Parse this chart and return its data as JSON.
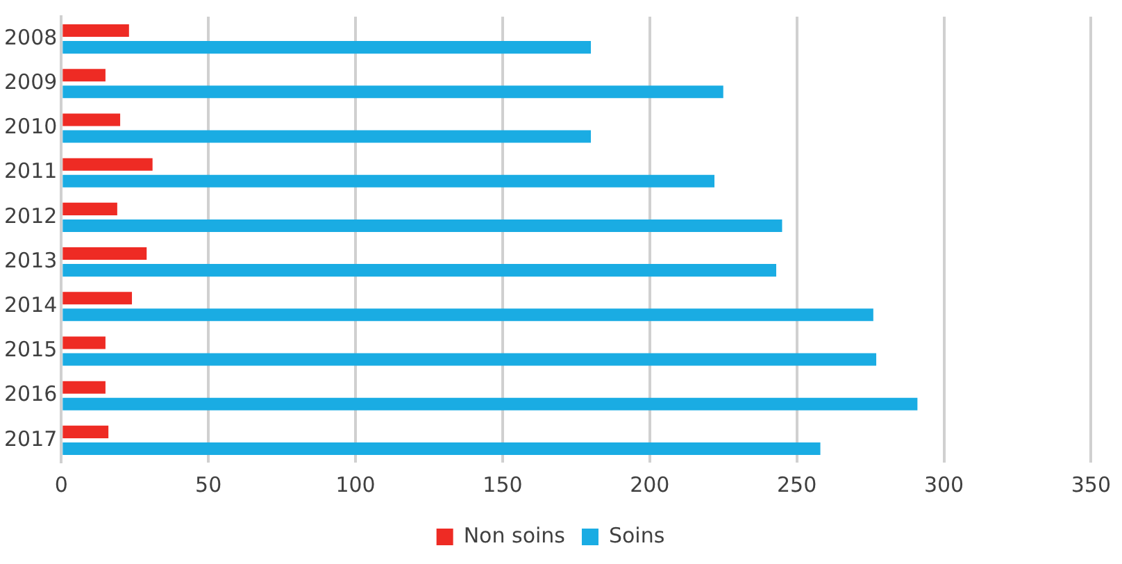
{
  "chart_data": {
    "type": "bar",
    "orientation": "horizontal",
    "categories": [
      "2008",
      "2009",
      "2010",
      "2011",
      "2012",
      "2013",
      "2014",
      "2015",
      "2016",
      "2017"
    ],
    "series": [
      {
        "name": "Non soins",
        "color": "#ee2b24",
        "values": [
          23,
          15,
          20,
          31,
          19,
          29,
          24,
          15,
          15,
          16
        ]
      },
      {
        "name": "Soins",
        "color": "#1aace3",
        "values": [
          180,
          225,
          180,
          222,
          245,
          243,
          276,
          277,
          291,
          258
        ]
      }
    ],
    "xlim": [
      0,
      350
    ],
    "xticks": [
      0,
      50,
      100,
      150,
      200,
      250,
      300,
      350
    ],
    "grid": "x",
    "legend": "bottom"
  }
}
